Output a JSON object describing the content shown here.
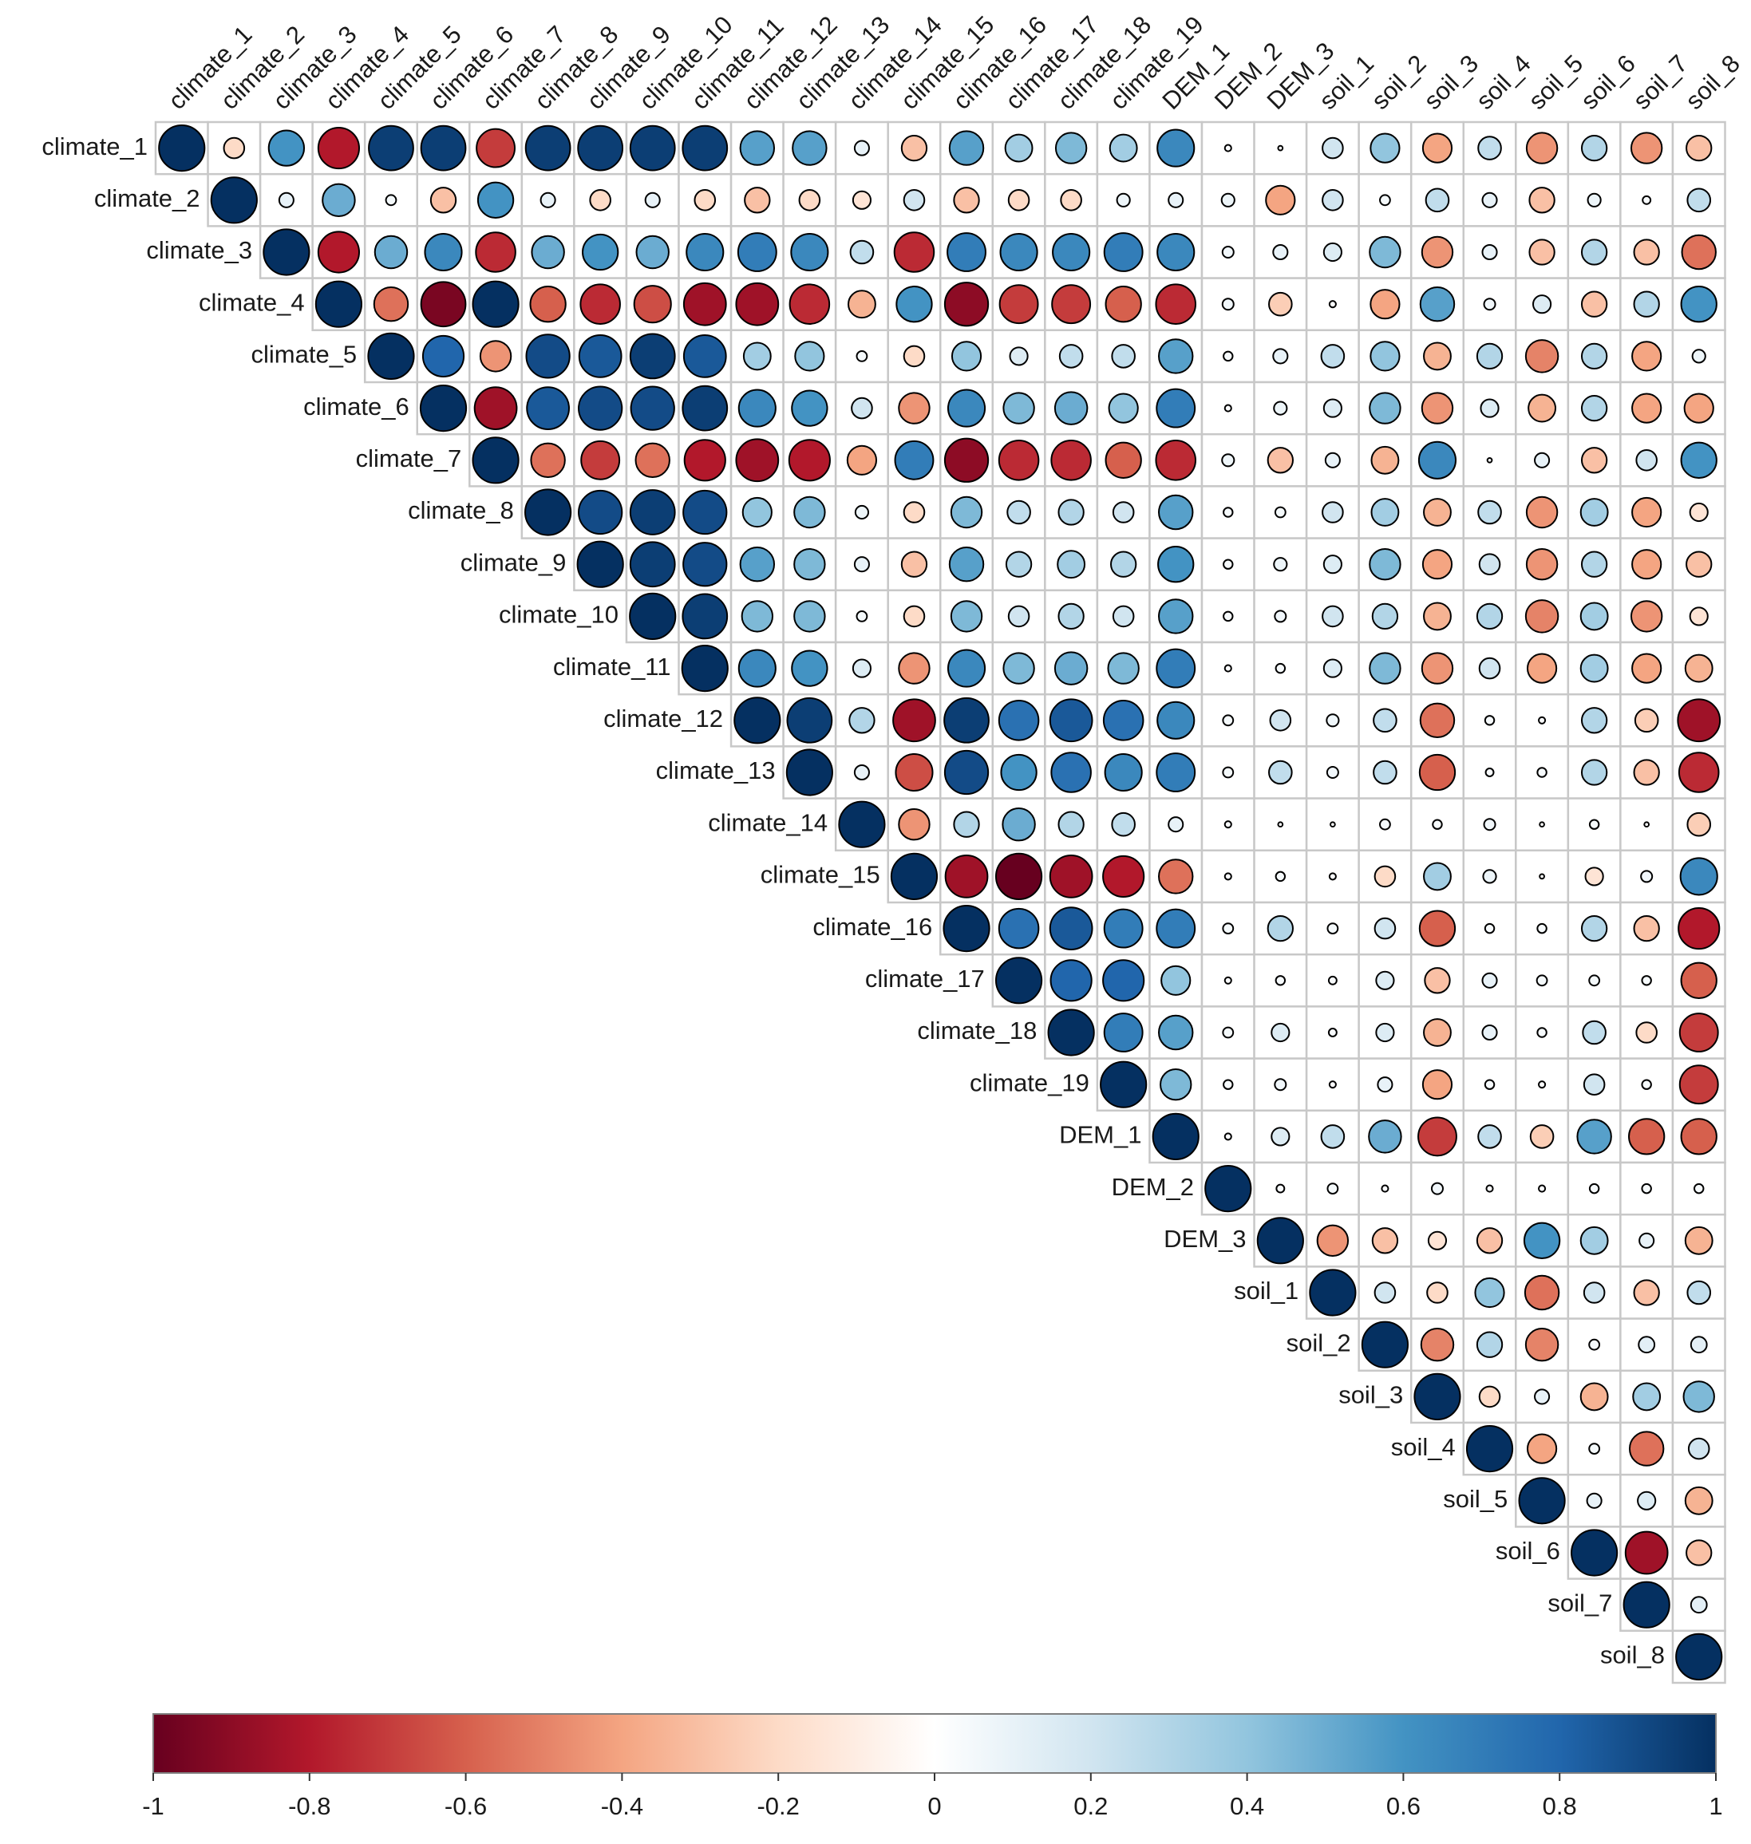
{
  "chart_data": {
    "type": "heatmap",
    "subtype": "correlation-upper-triangle-circles",
    "variables": [
      "climate_1",
      "climate_2",
      "climate_3",
      "climate_4",
      "climate_5",
      "climate_6",
      "climate_7",
      "climate_8",
      "climate_9",
      "climate_10",
      "climate_11",
      "climate_12",
      "climate_13",
      "climate_14",
      "climate_15",
      "climate_16",
      "climate_17",
      "climate_18",
      "climate_19",
      "DEM_1",
      "DEM_2",
      "DEM_3",
      "soil_1",
      "soil_2",
      "soil_3",
      "soil_4",
      "soil_5",
      "soil_6",
      "soil_7",
      "soil_8"
    ],
    "upper_triangle_rows": [
      [
        1,
        -0.2,
        0.6,
        -0.8,
        0.95,
        0.95,
        -0.7,
        0.95,
        0.95,
        0.95,
        0.95,
        0.55,
        0.55,
        0.1,
        -0.3,
        0.55,
        0.35,
        0.45,
        0.35,
        0.65,
        0.02,
        0.01,
        0.2,
        0.4,
        -0.4,
        0.25,
        -0.45,
        0.3,
        -0.45,
        -0.3
      ],
      [
        1,
        0.1,
        0.5,
        0.05,
        -0.3,
        0.6,
        0.1,
        -0.2,
        0.1,
        -0.2,
        -0.3,
        -0.2,
        -0.15,
        0.2,
        -0.3,
        -0.2,
        -0.2,
        0.08,
        0.1,
        0.08,
        -0.4,
        0.2,
        0.05,
        0.25,
        0.1,
        -0.3,
        0.08,
        0.03,
        0.25
      ],
      [
        1,
        -0.8,
        0.5,
        0.65,
        -0.75,
        0.5,
        0.6,
        0.5,
        0.65,
        0.7,
        0.65,
        0.25,
        -0.75,
        0.7,
        0.65,
        0.65,
        0.7,
        0.65,
        0.06,
        0.1,
        0.15,
        0.45,
        -0.45,
        0.1,
        -0.3,
        0.3,
        -0.3,
        -0.55
      ],
      [
        1,
        -0.55,
        -0.95,
        1,
        -0.6,
        -0.75,
        -0.65,
        -0.85,
        -0.85,
        -0.75,
        -0.35,
        0.6,
        -0.9,
        -0.7,
        -0.7,
        -0.6,
        -0.75,
        0.06,
        -0.25,
        0.02,
        -0.4,
        0.55,
        0.06,
        0.15,
        -0.3,
        0.3,
        0.6
      ],
      [
        1,
        0.8,
        -0.45,
        0.9,
        0.85,
        0.95,
        0.85,
        0.35,
        0.4,
        0.05,
        -0.2,
        0.4,
        0.15,
        0.25,
        0.25,
        0.55,
        0.04,
        0.1,
        0.25,
        0.4,
        -0.35,
        0.3,
        -0.5,
        0.3,
        -0.4,
        0.08
      ],
      [
        1,
        -0.85,
        0.85,
        0.9,
        0.9,
        0.95,
        0.65,
        0.6,
        0.2,
        -0.45,
        0.65,
        0.45,
        0.5,
        0.4,
        0.7,
        0.02,
        0.08,
        0.15,
        0.45,
        -0.45,
        0.15,
        -0.35,
        0.3,
        -0.4,
        -0.4
      ],
      [
        1,
        -0.55,
        -0.7,
        -0.55,
        -0.8,
        -0.85,
        -0.8,
        -0.4,
        0.7,
        -0.9,
        -0.75,
        -0.75,
        -0.6,
        -0.75,
        0.07,
        -0.3,
        0.1,
        -0.35,
        0.65,
        0.01,
        0.1,
        -0.3,
        0.2,
        0.6
      ],
      [
        1,
        0.9,
        0.95,
        0.9,
        0.4,
        0.45,
        0.08,
        -0.2,
        0.45,
        0.25,
        0.3,
        0.2,
        0.55,
        0.04,
        0.05,
        0.2,
        0.35,
        -0.35,
        0.25,
        -0.45,
        0.35,
        -0.4,
        -0.15
      ],
      [
        1,
        0.95,
        0.9,
        0.55,
        0.45,
        0.1,
        -0.3,
        0.55,
        0.3,
        0.35,
        0.3,
        0.6,
        0.04,
        0.08,
        0.15,
        0.45,
        -0.4,
        0.2,
        -0.45,
        0.3,
        -0.4,
        -0.3
      ],
      [
        1,
        0.95,
        0.45,
        0.45,
        0.05,
        -0.2,
        0.45,
        0.2,
        0.3,
        0.2,
        0.55,
        0.04,
        0.06,
        0.2,
        0.3,
        -0.35,
        0.3,
        -0.5,
        0.35,
        -0.45,
        -0.15
      ],
      [
        1,
        0.65,
        0.6,
        0.15,
        -0.45,
        0.65,
        0.45,
        0.5,
        0.45,
        0.7,
        0.02,
        0.04,
        0.15,
        0.45,
        -0.45,
        0.2,
        -0.4,
        0.35,
        -0.4,
        -0.35
      ],
      [
        1,
        0.95,
        0.3,
        -0.85,
        0.95,
        0.75,
        0.85,
        0.75,
        0.65,
        0.05,
        0.2,
        0.07,
        0.25,
        -0.55,
        0.04,
        0.02,
        0.3,
        -0.25,
        -0.85
      ],
      [
        1,
        0.1,
        -0.65,
        0.9,
        0.6,
        0.75,
        0.65,
        0.7,
        0.05,
        0.25,
        0.06,
        0.25,
        -0.6,
        0.03,
        0.04,
        0.3,
        -0.3,
        -0.75
      ],
      [
        1,
        -0.45,
        0.3,
        0.5,
        0.3,
        0.25,
        0.1,
        0.02,
        0.01,
        0.01,
        0.05,
        0.04,
        0.06,
        0.01,
        0.04,
        0.01,
        -0.25
      ],
      [
        1,
        -0.85,
        -1,
        -0.85,
        -0.8,
        -0.55,
        0.02,
        0.04,
        0.02,
        -0.2,
        0.35,
        0.08,
        0.01,
        -0.15,
        0.06,
        0.65
      ],
      [
        1,
        0.75,
        0.85,
        0.7,
        0.7,
        0.05,
        0.3,
        0.05,
        0.2,
        -0.6,
        0.04,
        0.04,
        0.3,
        -0.3,
        -0.8
      ],
      [
        1,
        0.8,
        0.8,
        0.4,
        0.02,
        0.04,
        0.03,
        0.15,
        -0.3,
        0.1,
        0.05,
        0.05,
        0.04,
        -0.6
      ],
      [
        1,
        0.7,
        0.55,
        0.05,
        0.15,
        0.03,
        0.15,
        -0.35,
        0.1,
        0.04,
        0.25,
        -0.2,
        -0.7
      ],
      [
        1,
        0.45,
        0.04,
        0.06,
        0.02,
        0.1,
        -0.4,
        0.04,
        0.02,
        0.2,
        0.04,
        -0.7
      ],
      [
        1,
        0.02,
        0.15,
        0.25,
        0.5,
        -0.7,
        0.25,
        -0.25,
        0.55,
        -0.6,
        -0.6
      ],
      [
        1,
        0.03,
        0.05,
        0.02,
        0.06,
        0.02,
        0.02,
        0.04,
        0.04,
        0.04
      ],
      [
        1,
        -0.45,
        -0.3,
        -0.15,
        -0.3,
        0.6,
        0.35,
        0.1,
        -0.35
      ],
      [
        1,
        0.2,
        -0.2,
        0.4,
        -0.55,
        0.2,
        -0.3,
        0.25
      ],
      [
        1,
        -0.5,
        0.3,
        -0.5,
        0.05,
        0.12,
        0.12
      ],
      [
        1,
        -0.2,
        0.1,
        -0.35,
        0.35,
        0.45
      ],
      [
        1,
        -0.4,
        0.05,
        -0.55,
        0.2
      ],
      [
        1,
        0.1,
        0.15,
        -0.35
      ],
      [
        1,
        -0.85,
        -0.3
      ],
      [
        1,
        0.12
      ],
      [
        1
      ]
    ],
    "color_scale": {
      "min": -1,
      "max": 1,
      "ticks": [
        -1,
        -0.8,
        -0.6,
        -0.4,
        -0.2,
        0,
        0.2,
        0.4,
        0.6,
        0.8,
        1
      ],
      "tick_labels": [
        "-1",
        "-0.8",
        "-0.6",
        "-0.4",
        "-0.2",
        "0",
        "0.2",
        "0.4",
        "0.6",
        "0.8",
        "1"
      ],
      "stops": [
        "#67001f",
        "#b2182b",
        "#d6604d",
        "#f4a582",
        "#fddbc7",
        "#ffffff",
        "#d1e5f0",
        "#92c5de",
        "#4393c3",
        "#2166ac",
        "#053061"
      ]
    }
  }
}
